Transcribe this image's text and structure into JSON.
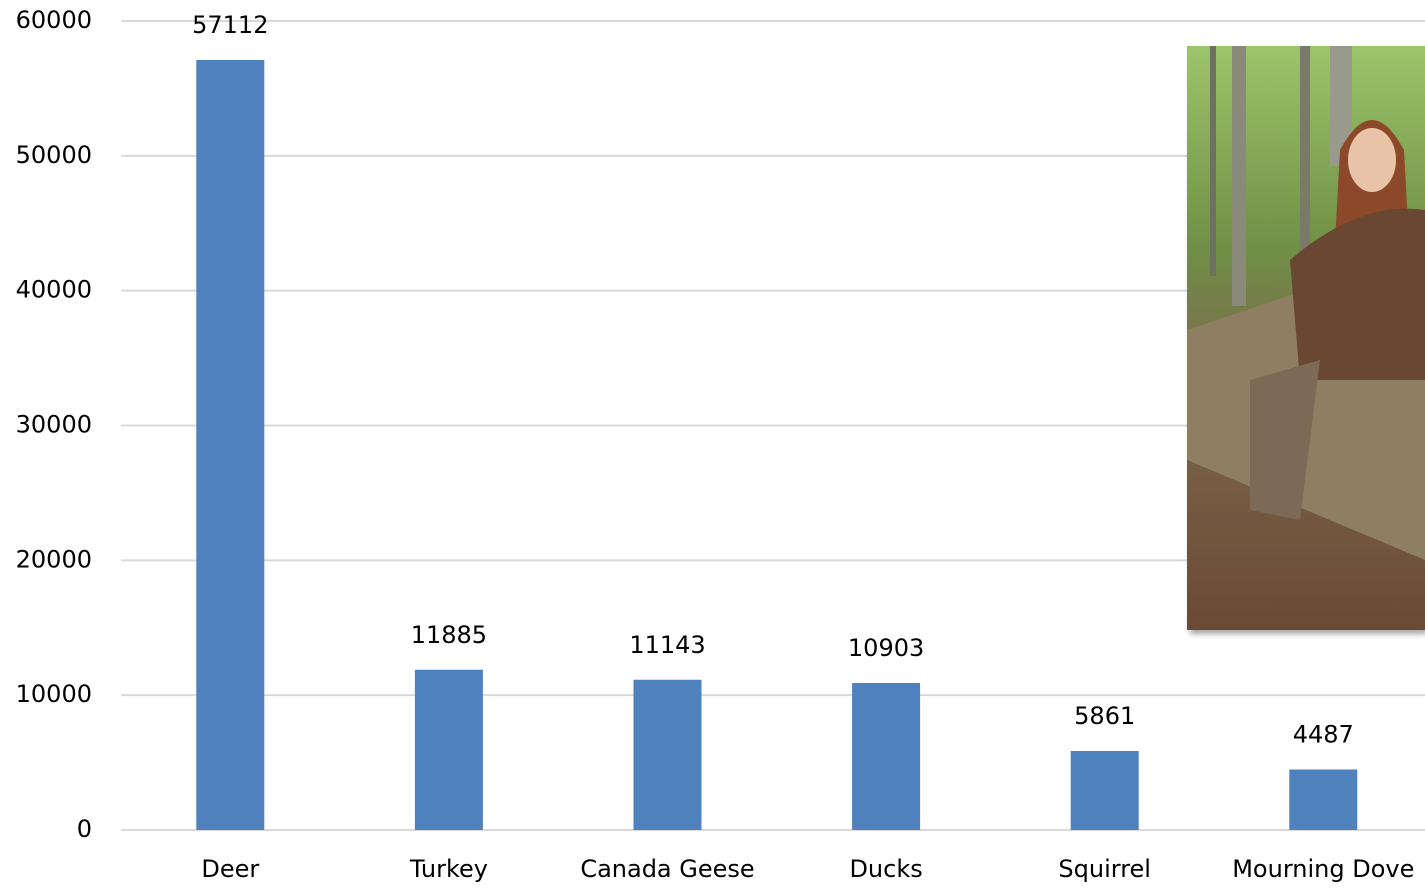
{
  "chart_data": {
    "type": "bar",
    "categories": [
      "Deer",
      "Turkey",
      "Canada Geese",
      "Ducks",
      "Squirrel",
      "Mourning Dove"
    ],
    "values": [
      57112,
      11885,
      11143,
      10903,
      5861,
      4487
    ],
    "color": "#4f81bd",
    "ylim": [
      0,
      60000
    ],
    "yticks": [
      0,
      10000,
      20000,
      30000,
      40000,
      50000,
      60000
    ],
    "grid": true
  }
}
